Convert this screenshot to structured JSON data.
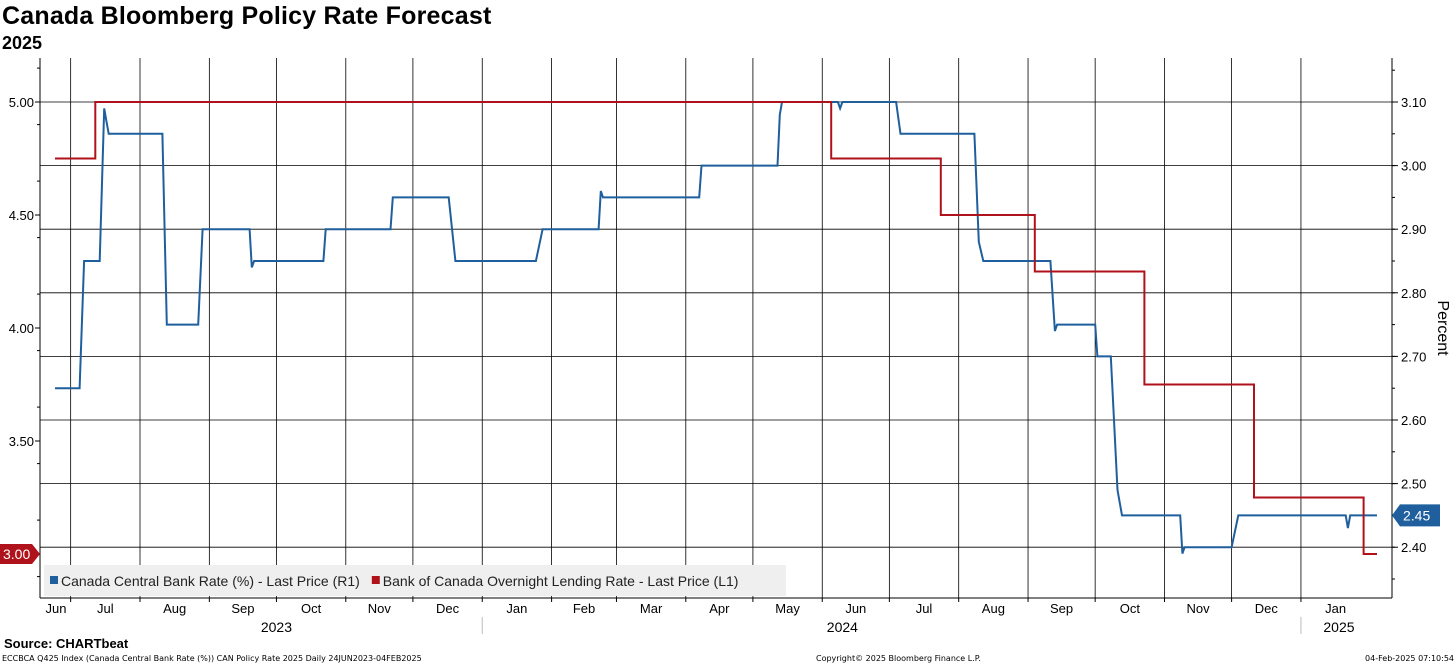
{
  "chart_data": {
    "type": "line",
    "title": "Canada Bloomberg Policy Rate Forecast",
    "subtitle": "2025",
    "y_right_label": "Percent",
    "x_range": [
      "2023-06-24",
      "2025-02-04"
    ],
    "y_left": {
      "ticks": [
        "5.00",
        "4.50",
        "4.00",
        "3.50",
        "3.00"
      ],
      "range": [
        2.8,
        5.2
      ]
    },
    "y_right": {
      "ticks": [
        "3.10",
        "3.00",
        "2.90",
        "2.80",
        "2.70",
        "2.60",
        "2.50",
        "2.40"
      ],
      "range": [
        2.3,
        3.17
      ]
    },
    "months": [
      {
        "label": "Jun",
        "date": "2023-06-01"
      },
      {
        "label": "Jul",
        "date": "2023-07-01"
      },
      {
        "label": "Aug",
        "date": "2023-08-01"
      },
      {
        "label": "Sep",
        "date": "2023-09-01"
      },
      {
        "label": "Oct",
        "date": "2023-10-01"
      },
      {
        "label": "Nov",
        "date": "2023-11-01"
      },
      {
        "label": "Dec",
        "date": "2023-12-01"
      },
      {
        "label": "Jan",
        "date": "2024-01-01"
      },
      {
        "label": "Feb",
        "date": "2024-02-01"
      },
      {
        "label": "Mar",
        "date": "2024-03-01"
      },
      {
        "label": "Apr",
        "date": "2024-04-01"
      },
      {
        "label": "May",
        "date": "2024-05-01"
      },
      {
        "label": "Jun",
        "date": "2024-06-01"
      },
      {
        "label": "Jul",
        "date": "2024-07-01"
      },
      {
        "label": "Aug",
        "date": "2024-08-01"
      },
      {
        "label": "Sep",
        "date": "2024-09-01"
      },
      {
        "label": "Oct",
        "date": "2024-10-01"
      },
      {
        "label": "Nov",
        "date": "2024-11-01"
      },
      {
        "label": "Dec",
        "date": "2024-12-01"
      },
      {
        "label": "Jan",
        "date": "2025-01-01"
      }
    ],
    "years": [
      {
        "label": "2023",
        "date": "2023-10-01"
      },
      {
        "label": "2024",
        "date": "2024-06-10"
      },
      {
        "label": "2025",
        "date": "2025-01-18"
      }
    ],
    "year_separators": [
      "2024-01-01",
      "2025-01-01"
    ],
    "series": [
      {
        "name": "Canada Central Bank Rate (%) - Last Price (R1)",
        "axis": "right",
        "color": "#1f5f9e",
        "last_value_label": "2.45",
        "points": [
          [
            "2023-06-24",
            2.65
          ],
          [
            "2023-07-05",
            2.65
          ],
          [
            "2023-07-07",
            2.85
          ],
          [
            "2023-07-14",
            2.85
          ],
          [
            "2023-07-16",
            3.09
          ],
          [
            "2023-07-17",
            3.07
          ],
          [
            "2023-07-18",
            3.05
          ],
          [
            "2023-08-11",
            3.05
          ],
          [
            "2023-08-13",
            2.75
          ],
          [
            "2023-08-27",
            2.75
          ],
          [
            "2023-08-29",
            2.9
          ],
          [
            "2023-09-19",
            2.9
          ],
          [
            "2023-09-20",
            2.84
          ],
          [
            "2023-09-21",
            2.85
          ],
          [
            "2023-10-22",
            2.85
          ],
          [
            "2023-10-23",
            2.9
          ],
          [
            "2023-11-21",
            2.9
          ],
          [
            "2023-11-22",
            2.95
          ],
          [
            "2023-12-17",
            2.95
          ],
          [
            "2023-12-20",
            2.85
          ],
          [
            "2024-01-25",
            2.85
          ],
          [
            "2024-01-28",
            2.9
          ],
          [
            "2024-02-22",
            2.9
          ],
          [
            "2024-02-23",
            2.96
          ],
          [
            "2024-02-24",
            2.95
          ],
          [
            "2024-04-07",
            2.95
          ],
          [
            "2024-04-08",
            3.0
          ],
          [
            "2024-05-12",
            3.0
          ],
          [
            "2024-05-13",
            3.08
          ],
          [
            "2024-05-14",
            3.1
          ],
          [
            "2024-05-30",
            3.1
          ],
          [
            "2024-06-08",
            3.1
          ],
          [
            "2024-06-09",
            3.09
          ],
          [
            "2024-06-10",
            3.1
          ],
          [
            "2024-07-04",
            3.1
          ],
          [
            "2024-07-06",
            3.05
          ],
          [
            "2024-08-08",
            3.05
          ],
          [
            "2024-08-10",
            2.88
          ],
          [
            "2024-08-12",
            2.85
          ],
          [
            "2024-09-11",
            2.85
          ],
          [
            "2024-09-13",
            2.74
          ],
          [
            "2024-09-14",
            2.75
          ],
          [
            "2024-10-01",
            2.75
          ],
          [
            "2024-10-02",
            2.7
          ],
          [
            "2024-10-08",
            2.7
          ],
          [
            "2024-10-11",
            2.49
          ],
          [
            "2024-10-13",
            2.45
          ],
          [
            "2024-11-08",
            2.45
          ],
          [
            "2024-11-09",
            2.39
          ],
          [
            "2024-11-10",
            2.4
          ],
          [
            "2024-12-01",
            2.4
          ],
          [
            "2024-12-04",
            2.45
          ],
          [
            "2025-01-21",
            2.45
          ],
          [
            "2025-01-22",
            2.43
          ],
          [
            "2025-01-23",
            2.45
          ],
          [
            "2025-02-04",
            2.45
          ]
        ]
      },
      {
        "name": "Bank of Canada Overnight Lending Rate - Last Price (L1)",
        "axis": "left",
        "color": "#b0121b",
        "last_value_label": "3.00",
        "points": [
          [
            "2023-06-24",
            4.75
          ],
          [
            "2023-07-12",
            4.75
          ],
          [
            "2023-07-12",
            5.0
          ],
          [
            "2024-06-05",
            5.0
          ],
          [
            "2024-06-05",
            4.75
          ],
          [
            "2024-07-24",
            4.75
          ],
          [
            "2024-07-24",
            4.5
          ],
          [
            "2024-09-04",
            4.5
          ],
          [
            "2024-09-04",
            4.25
          ],
          [
            "2024-10-23",
            4.25
          ],
          [
            "2024-10-23",
            3.75
          ],
          [
            "2024-12-11",
            3.75
          ],
          [
            "2024-12-11",
            3.25
          ],
          [
            "2025-01-29",
            3.25
          ],
          [
            "2025-01-29",
            3.0
          ],
          [
            "2025-02-04",
            3.0
          ]
        ]
      }
    ],
    "legend_placement": "bottom-left",
    "grid": true
  },
  "footer": {
    "source": "Source: CHARTbeat",
    "left_note": "ECCBCA Q425 Index (Canada Central Bank Rate (%)) CAN Policy Rate 2025  Daily 24JUN2023-04FEB2025",
    "center_note": "Copyright© 2025 Bloomberg Finance L.P.",
    "right_note": "04-Feb-2025 07:10:54"
  }
}
